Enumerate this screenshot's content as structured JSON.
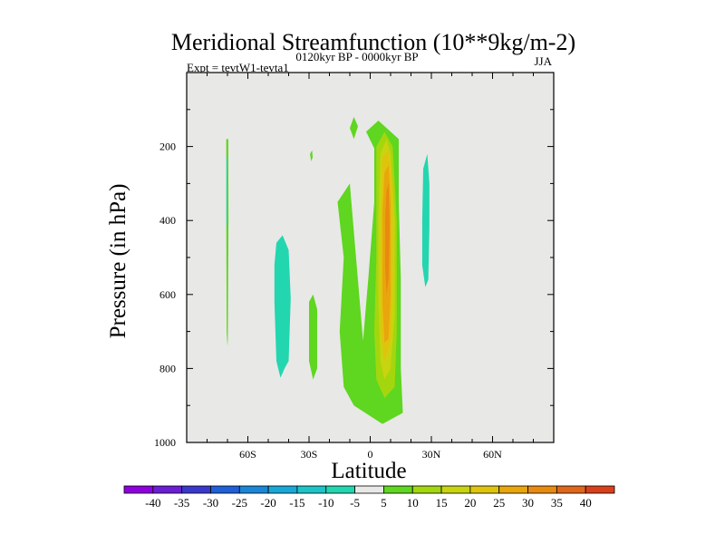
{
  "chart_data": {
    "type": "filled-contour",
    "title": "Meridional Streamfunction (10**9kg/m-2)",
    "subtitle_left": "Expt = tevtW1-tevta1",
    "subtitle_center": "0120kyr BP - 0000kyr BP",
    "subtitle_right": "JJA",
    "xlabel": "Latitude",
    "ylabel": "Pressure (in hPa)",
    "xlim": [
      -90,
      90
    ],
    "ylim": [
      1000,
      0
    ],
    "x_ticks": [
      {
        "value": -60,
        "label": "60S"
      },
      {
        "value": -30,
        "label": "30S"
      },
      {
        "value": 0,
        "label": "0"
      },
      {
        "value": 30,
        "label": "30N"
      },
      {
        "value": 60,
        "label": "60N"
      }
    ],
    "y_ticks": [
      {
        "value": 200,
        "label": "200"
      },
      {
        "value": 400,
        "label": "400"
      },
      {
        "value": 600,
        "label": "600"
      },
      {
        "value": 800,
        "label": "800"
      },
      {
        "value": 1000,
        "label": "1000"
      }
    ],
    "plot_background": "#e8e8e6",
    "colorbar": {
      "levels": [
        -40,
        -35,
        -30,
        -25,
        -20,
        -15,
        -10,
        -5,
        5,
        10,
        15,
        20,
        25,
        30,
        35,
        40
      ],
      "labels": [
        "-40",
        "-35",
        "-30",
        "-25",
        "-20",
        "-15",
        "-10",
        "-5",
        "5",
        "10",
        "15",
        "20",
        "25",
        "30",
        "35",
        "40"
      ],
      "colors": [
        "#8f00e0",
        "#6a1fd4",
        "#3a38cc",
        "#1f60d8",
        "#1a86d8",
        "#18a8d8",
        "#1cc4c8",
        "#22d6b0",
        "#e8e8e6",
        "#5fd620",
        "#a4d60e",
        "#c8d410",
        "#dfc40e",
        "#e8a60c",
        "#e88a10",
        "#e0661a",
        "#d8401c"
      ]
    },
    "contour_regions": [
      {
        "name": "cell-a-pos-5",
        "lat": 0.5,
        "levels": [
          5
        ],
        "fill": "#5fd620",
        "points": [
          [
            -3.5,
            725
          ],
          [
            -1,
            560
          ],
          [
            2,
            350
          ],
          [
            2,
            205
          ],
          [
            -2,
            160
          ],
          [
            4,
            130
          ],
          [
            14,
            180
          ],
          [
            14,
            350
          ],
          [
            15,
            560
          ],
          [
            15,
            800
          ],
          [
            16,
            920
          ],
          [
            6,
            950
          ],
          [
            -8,
            900
          ],
          [
            -13,
            850
          ],
          [
            -15,
            700
          ],
          [
            -13,
            500
          ],
          [
            -16,
            350
          ],
          [
            -10,
            300
          ]
        ]
      },
      {
        "name": "cell-b-pos-10",
        "lat": 3,
        "levels": [
          10
        ],
        "fill": "#a4d60e",
        "points": [
          [
            3,
            200
          ],
          [
            7,
            160
          ],
          [
            11,
            200
          ],
          [
            13,
            400
          ],
          [
            13,
            700
          ],
          [
            12,
            850
          ],
          [
            7,
            880
          ],
          [
            3,
            830
          ],
          [
            2,
            700
          ],
          [
            3,
            500
          ]
        ]
      },
      {
        "name": "cell-b-pos-15",
        "lat": 5,
        "levels": [
          15
        ],
        "fill": "#c8d410",
        "points": [
          [
            5,
            220
          ],
          [
            8,
            180
          ],
          [
            10,
            220
          ],
          [
            12,
            400
          ],
          [
            12,
            650
          ],
          [
            10,
            800
          ],
          [
            7,
            830
          ],
          [
            5,
            780
          ],
          [
            4,
            600
          ],
          [
            4,
            400
          ]
        ]
      },
      {
        "name": "cell-b-pos-20",
        "lat": 6,
        "levels": [
          20
        ],
        "fill": "#dfc40e",
        "points": [
          [
            6,
            230
          ],
          [
            9,
            210
          ],
          [
            11,
            300
          ],
          [
            11,
            550
          ],
          [
            10,
            730
          ],
          [
            7,
            780
          ],
          [
            5,
            700
          ],
          [
            5,
            450
          ]
        ]
      },
      {
        "name": "cell-b-pos-25",
        "lat": 7,
        "levels": [
          25
        ],
        "fill": "#e8a60c",
        "points": [
          [
            7,
            270
          ],
          [
            9,
            250
          ],
          [
            10,
            350
          ],
          [
            10,
            600
          ],
          [
            9,
            720
          ],
          [
            7,
            730
          ],
          [
            6,
            620
          ],
          [
            6,
            380
          ]
        ]
      },
      {
        "name": "cell-b-pos-30",
        "lat": 8,
        "levels": [
          30
        ],
        "fill": "#e88a10",
        "points": [
          [
            8,
            320
          ],
          [
            9,
            300
          ],
          [
            9.5,
            420
          ],
          [
            9,
            560
          ],
          [
            8,
            600
          ],
          [
            7.3,
            520
          ],
          [
            7.3,
            400
          ]
        ]
      },
      {
        "name": "small-pos-upper",
        "lat": -8,
        "levels": [
          5
        ],
        "fill": "#5fd620",
        "points": [
          [
            -10,
            150
          ],
          [
            -8,
            120
          ],
          [
            -6,
            145
          ],
          [
            -8,
            180
          ]
        ]
      },
      {
        "name": "small-pos-mid",
        "lat": -28,
        "levels": [
          5
        ],
        "fill": "#5fd620",
        "points": [
          [
            -30,
            620
          ],
          [
            -28,
            600
          ],
          [
            -26,
            640
          ],
          [
            -26,
            800
          ],
          [
            -28,
            830
          ],
          [
            -30,
            780
          ]
        ]
      },
      {
        "name": "small-pos-left",
        "lat": -70,
        "levels": [
          5
        ],
        "fill": "#5fd620",
        "points": [
          [
            -70.6,
            180
          ],
          [
            -69.6,
            180
          ],
          [
            -69.5,
            400
          ],
          [
            -69.8,
            720
          ],
          [
            -70,
            740
          ],
          [
            -70.4,
            700
          ],
          [
            -70.6,
            400
          ]
        ]
      },
      {
        "name": "neg-strip-left",
        "lat": -70,
        "levels": [
          -5
        ],
        "fill": "#22d6b0",
        "points": [
          [
            -70.4,
            230
          ],
          [
            -69.9,
            230
          ],
          [
            -69.9,
            400
          ],
          [
            -70.1,
            420
          ],
          [
            -70.4,
            400
          ]
        ]
      },
      {
        "name": "neg-band-45S",
        "lat": -44,
        "levels": [
          -5
        ],
        "fill": "#22d6b0",
        "points": [
          [
            -46,
            460
          ],
          [
            -43,
            440
          ],
          [
            -40,
            480
          ],
          [
            -39,
            610
          ],
          [
            -40,
            780
          ],
          [
            -42,
            800
          ],
          [
            -44,
            825
          ],
          [
            -46,
            780
          ],
          [
            -47,
            620
          ],
          [
            -47,
            520
          ]
        ]
      },
      {
        "name": "neg-band-25N",
        "lat": 27,
        "levels": [
          -5
        ],
        "fill": "#22d6b0",
        "points": [
          [
            26,
            260
          ],
          [
            28,
            220
          ],
          [
            29,
            300
          ],
          [
            29,
            420
          ],
          [
            28.5,
            560
          ],
          [
            27,
            580
          ],
          [
            25.5,
            520
          ],
          [
            25.5,
            400
          ]
        ]
      },
      {
        "name": "small-pos-dot",
        "lat": -29,
        "levels": [
          5
        ],
        "fill": "#5fd620",
        "points": [
          [
            -29.5,
            220
          ],
          [
            -28.5,
            210
          ],
          [
            -28.2,
            230
          ],
          [
            -29,
            240
          ]
        ]
      }
    ]
  }
}
